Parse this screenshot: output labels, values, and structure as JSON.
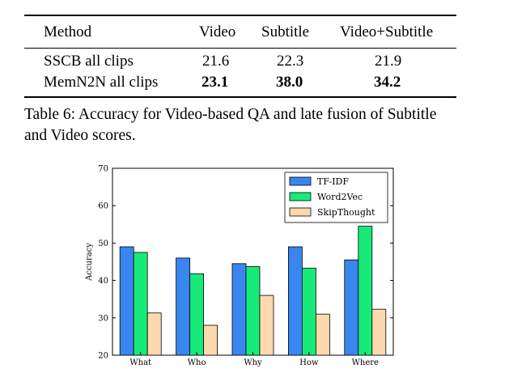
{
  "table": {
    "headers": [
      "Method",
      "Video",
      "Subtitle",
      "Video+Subtitle"
    ],
    "rows": [
      {
        "method": "SSCB all clips",
        "video": "21.6",
        "subtitle": "22.3",
        "video_subtitle": "21.9",
        "bold": false
      },
      {
        "method": "MemN2N all clips",
        "video": "23.1",
        "subtitle": "38.0",
        "video_subtitle": "34.2",
        "bold": true
      }
    ],
    "caption_line1": "Table 6: Accuracy for Video-based QA and late fusion of Subtitle",
    "caption_line2": "and Video scores."
  },
  "chart_data": {
    "type": "bar",
    "categories": [
      "What",
      "Who",
      "Why",
      "How",
      "Where"
    ],
    "series": [
      {
        "name": "TF-IDF",
        "values": [
          49.0,
          46.0,
          44.5,
          49.0,
          45.5
        ],
        "color": "#3a86f0"
      },
      {
        "name": "Word2Vec",
        "values": [
          47.5,
          41.8,
          43.7,
          43.3,
          54.5
        ],
        "color": "#18ea7a"
      },
      {
        "name": "SkipThought",
        "values": [
          31.3,
          28.0,
          36.0,
          31.0,
          32.3
        ],
        "color": "#fdd9ad"
      }
    ],
    "ylabel": "Accuracy",
    "ylim": [
      20,
      70
    ],
    "yticks": [
      "20",
      "30",
      "40",
      "50",
      "60",
      "70"
    ],
    "legend_position": "top-right",
    "grid": false
  }
}
